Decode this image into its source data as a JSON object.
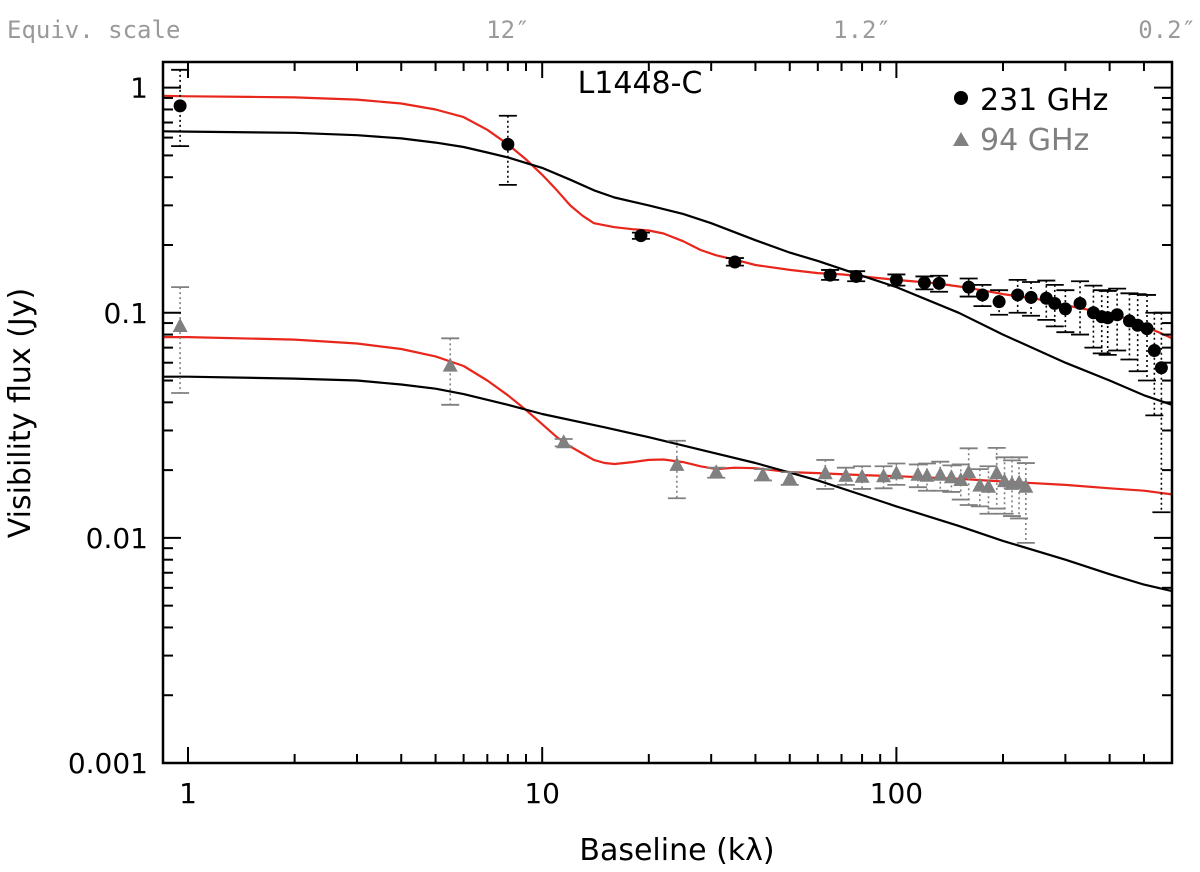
{
  "chart_data": {
    "type": "scatter",
    "title": "L1448-C",
    "xlabel": "Baseline (kλ)",
    "ylabel": "Visibility flux (Jy)",
    "xscale": "log",
    "yscale": "log",
    "xlim": [
      0.85,
      600
    ],
    "ylim": [
      0.001,
      1.3
    ],
    "x_ticks": [
      {
        "value": 1,
        "label": "1"
      },
      {
        "value": 10,
        "label": "10"
      },
      {
        "value": 100,
        "label": "100"
      }
    ],
    "y_ticks": [
      {
        "value": 0.001,
        "label": "0.001"
      },
      {
        "value": 0.01,
        "label": "0.01"
      },
      {
        "value": 0.1,
        "label": "0.1"
      },
      {
        "value": 1,
        "label": "1"
      }
    ],
    "top_axis": {
      "label": "Equiv. scale",
      "ticks": [
        {
          "value": 8,
          "label": "12″"
        },
        {
          "value": 80,
          "label": "1.2″"
        },
        {
          "value": 500,
          "label": "0.2″"
        }
      ]
    },
    "colors": {
      "s231": "#000000",
      "s94": "#808080",
      "model_red": "#e8261b",
      "model_black": "#000000",
      "top_label": "#9a9a9a"
    },
    "legend": [
      {
        "label": "231 GHz",
        "marker": "circle",
        "color": "#000000"
      },
      {
        "label": "94 GHz",
        "marker": "triangle",
        "color": "#808080"
      }
    ],
    "series": [
      {
        "name": "231 GHz",
        "marker": "circle",
        "color": "#000000",
        "points": [
          {
            "x": 0.95,
            "y": 0.83,
            "lo": 0.55,
            "hi": 1.2
          },
          {
            "x": 8.0,
            "y": 0.56,
            "lo": 0.37,
            "hi": 0.75
          },
          {
            "x": 19,
            "y": 0.22,
            "lo": 0.213,
            "hi": 0.227
          },
          {
            "x": 35,
            "y": 0.168,
            "lo": 0.162,
            "hi": 0.175
          },
          {
            "x": 65,
            "y": 0.147,
            "lo": 0.14,
            "hi": 0.155
          },
          {
            "x": 77,
            "y": 0.145,
            "lo": 0.138,
            "hi": 0.153
          },
          {
            "x": 100,
            "y": 0.14,
            "lo": 0.132,
            "hi": 0.148
          },
          {
            "x": 120,
            "y": 0.136,
            "lo": 0.127,
            "hi": 0.145
          },
          {
            "x": 132,
            "y": 0.135,
            "lo": 0.124,
            "hi": 0.146
          },
          {
            "x": 160,
            "y": 0.13,
            "lo": 0.118,
            "hi": 0.142
          },
          {
            "x": 175,
            "y": 0.12,
            "lo": 0.107,
            "hi": 0.133
          },
          {
            "x": 195,
            "y": 0.112,
            "lo": 0.098,
            "hi": 0.126
          },
          {
            "x": 220,
            "y": 0.12,
            "lo": 0.1,
            "hi": 0.14
          },
          {
            "x": 240,
            "y": 0.117,
            "lo": 0.097,
            "hi": 0.137
          },
          {
            "x": 265,
            "y": 0.116,
            "lo": 0.093,
            "hi": 0.139
          },
          {
            "x": 280,
            "y": 0.11,
            "lo": 0.087,
            "hi": 0.133
          },
          {
            "x": 300,
            "y": 0.104,
            "lo": 0.082,
            "hi": 0.126
          },
          {
            "x": 330,
            "y": 0.11,
            "lo": 0.08,
            "hi": 0.138
          },
          {
            "x": 360,
            "y": 0.1,
            "lo": 0.07,
            "hi": 0.132
          },
          {
            "x": 380,
            "y": 0.096,
            "lo": 0.066,
            "hi": 0.126
          },
          {
            "x": 395,
            "y": 0.095,
            "lo": 0.065,
            "hi": 0.125
          },
          {
            "x": 420,
            "y": 0.098,
            "lo": 0.068,
            "hi": 0.128
          },
          {
            "x": 455,
            "y": 0.092,
            "lo": 0.062,
            "hi": 0.122
          },
          {
            "x": 480,
            "y": 0.088,
            "lo": 0.055,
            "hi": 0.121
          },
          {
            "x": 510,
            "y": 0.085,
            "lo": 0.05,
            "hi": 0.12
          },
          {
            "x": 535,
            "y": 0.068,
            "lo": 0.035,
            "hi": 0.1
          },
          {
            "x": 560,
            "y": 0.057,
            "lo": 0.013,
            "hi": 0.1
          }
        ]
      },
      {
        "name": "94 GHz",
        "marker": "triangle",
        "color": "#808080",
        "points": [
          {
            "x": 0.95,
            "y": 0.087,
            "lo": 0.044,
            "hi": 0.13
          },
          {
            "x": 5.5,
            "y": 0.058,
            "lo": 0.039,
            "hi": 0.077
          },
          {
            "x": 11.5,
            "y": 0.0265,
            "lo": 0.0255,
            "hi": 0.0275
          },
          {
            "x": 24,
            "y": 0.021,
            "lo": 0.015,
            "hi": 0.027
          },
          {
            "x": 31,
            "y": 0.0195,
            "lo": 0.0185,
            "hi": 0.0205
          },
          {
            "x": 42,
            "y": 0.019,
            "lo": 0.018,
            "hi": 0.0202
          },
          {
            "x": 50,
            "y": 0.0183,
            "lo": 0.0172,
            "hi": 0.0196
          },
          {
            "x": 63,
            "y": 0.0193,
            "lo": 0.0165,
            "hi": 0.0222
          },
          {
            "x": 72,
            "y": 0.0188,
            "lo": 0.0172,
            "hi": 0.0205
          },
          {
            "x": 80,
            "y": 0.0186,
            "lo": 0.0165,
            "hi": 0.0208
          },
          {
            "x": 92,
            "y": 0.0187,
            "lo": 0.0166,
            "hi": 0.0208
          },
          {
            "x": 100,
            "y": 0.0193,
            "lo": 0.0172,
            "hi": 0.0214
          },
          {
            "x": 115,
            "y": 0.019,
            "lo": 0.0168,
            "hi": 0.0212
          },
          {
            "x": 122,
            "y": 0.0188,
            "lo": 0.0162,
            "hi": 0.0214
          },
          {
            "x": 133,
            "y": 0.019,
            "lo": 0.0162,
            "hi": 0.0218
          },
          {
            "x": 143,
            "y": 0.0185,
            "lo": 0.016,
            "hi": 0.021
          },
          {
            "x": 152,
            "y": 0.018,
            "lo": 0.0148,
            "hi": 0.0212
          },
          {
            "x": 160,
            "y": 0.0195,
            "lo": 0.014,
            "hi": 0.025
          },
          {
            "x": 172,
            "y": 0.017,
            "lo": 0.0138,
            "hi": 0.0202
          },
          {
            "x": 182,
            "y": 0.0168,
            "lo": 0.0128,
            "hi": 0.0208
          },
          {
            "x": 192,
            "y": 0.0193,
            "lo": 0.0135,
            "hi": 0.0251
          },
          {
            "x": 202,
            "y": 0.0178,
            "lo": 0.0128,
            "hi": 0.0228
          },
          {
            "x": 212,
            "y": 0.0173,
            "lo": 0.0125,
            "hi": 0.0221
          },
          {
            "x": 222,
            "y": 0.0175,
            "lo": 0.0122,
            "hi": 0.0228
          },
          {
            "x": 232,
            "y": 0.0168,
            "lo": 0.0095,
            "hi": 0.0215
          }
        ]
      }
    ],
    "models": [
      {
        "name": "231 GHz red model",
        "color": "#e8261b",
        "points": [
          [
            0.85,
            0.92
          ],
          [
            1,
            0.915
          ],
          [
            1.5,
            0.91
          ],
          [
            2,
            0.905
          ],
          [
            3,
            0.885
          ],
          [
            4,
            0.85
          ],
          [
            5,
            0.8
          ],
          [
            6,
            0.74
          ],
          [
            7,
            0.65
          ],
          [
            8,
            0.56
          ],
          [
            9,
            0.48
          ],
          [
            10,
            0.41
          ],
          [
            11,
            0.35
          ],
          [
            12,
            0.3
          ],
          [
            13,
            0.27
          ],
          [
            14,
            0.25
          ],
          [
            16,
            0.24
          ],
          [
            18,
            0.235
          ],
          [
            20,
            0.232
          ],
          [
            22,
            0.225
          ],
          [
            25,
            0.208
          ],
          [
            28,
            0.19
          ],
          [
            31,
            0.18
          ],
          [
            35,
            0.172
          ],
          [
            40,
            0.163
          ],
          [
            50,
            0.155
          ],
          [
            60,
            0.15
          ],
          [
            70,
            0.148
          ],
          [
            80,
            0.145
          ],
          [
            100,
            0.14
          ],
          [
            130,
            0.135
          ],
          [
            160,
            0.129
          ],
          [
            200,
            0.121
          ],
          [
            250,
            0.115
          ],
          [
            300,
            0.108
          ],
          [
            350,
            0.103
          ],
          [
            400,
            0.099
          ],
          [
            450,
            0.094
          ],
          [
            500,
            0.087
          ],
          [
            550,
            0.082
          ],
          [
            600,
            0.077
          ]
        ]
      },
      {
        "name": "231 GHz black model",
        "color": "#000000",
        "points": [
          [
            0.85,
            0.64
          ],
          [
            1,
            0.638
          ],
          [
            2,
            0.63
          ],
          [
            3,
            0.615
          ],
          [
            4,
            0.595
          ],
          [
            5,
            0.57
          ],
          [
            6,
            0.545
          ],
          [
            7,
            0.515
          ],
          [
            8,
            0.49
          ],
          [
            10,
            0.44
          ],
          [
            12,
            0.39
          ],
          [
            14,
            0.35
          ],
          [
            16,
            0.325
          ],
          [
            20,
            0.3
          ],
          [
            25,
            0.275
          ],
          [
            30,
            0.25
          ],
          [
            40,
            0.21
          ],
          [
            50,
            0.185
          ],
          [
            60,
            0.17
          ],
          [
            80,
            0.146
          ],
          [
            100,
            0.13
          ],
          [
            150,
            0.1
          ],
          [
            200,
            0.08
          ],
          [
            300,
            0.06
          ],
          [
            400,
            0.05
          ],
          [
            500,
            0.043
          ],
          [
            600,
            0.039
          ]
        ]
      },
      {
        "name": "94 GHz red model",
        "color": "#e8261b",
        "points": [
          [
            0.85,
            0.078
          ],
          [
            1,
            0.078
          ],
          [
            2,
            0.076
          ],
          [
            3,
            0.073
          ],
          [
            4,
            0.069
          ],
          [
            5,
            0.064
          ],
          [
            6,
            0.058
          ],
          [
            7,
            0.05
          ],
          [
            8,
            0.043
          ],
          [
            9,
            0.037
          ],
          [
            10,
            0.032
          ],
          [
            11,
            0.028
          ],
          [
            12,
            0.0255
          ],
          [
            13,
            0.0237
          ],
          [
            14,
            0.0222
          ],
          [
            15,
            0.0215
          ],
          [
            16,
            0.0213
          ],
          [
            18,
            0.0217
          ],
          [
            20,
            0.0222
          ],
          [
            22,
            0.0223
          ],
          [
            25,
            0.0217
          ],
          [
            28,
            0.0208
          ],
          [
            31,
            0.0202
          ],
          [
            35,
            0.0205
          ],
          [
            40,
            0.0204
          ],
          [
            50,
            0.0196
          ],
          [
            60,
            0.0194
          ],
          [
            80,
            0.019
          ],
          [
            100,
            0.0188
          ],
          [
            150,
            0.0183
          ],
          [
            200,
            0.0178
          ],
          [
            300,
            0.0172
          ],
          [
            400,
            0.0166
          ],
          [
            500,
            0.0162
          ],
          [
            600,
            0.0156
          ]
        ]
      },
      {
        "name": "94 GHz black model",
        "color": "#000000",
        "points": [
          [
            0.85,
            0.052
          ],
          [
            1,
            0.052
          ],
          [
            2,
            0.051
          ],
          [
            3,
            0.05
          ],
          [
            4,
            0.048
          ],
          [
            5,
            0.046
          ],
          [
            6,
            0.0435
          ],
          [
            8,
            0.039
          ],
          [
            10,
            0.0355
          ],
          [
            15,
            0.031
          ],
          [
            20,
            0.028
          ],
          [
            30,
            0.024
          ],
          [
            40,
            0.0215
          ],
          [
            60,
            0.018
          ],
          [
            80,
            0.0155
          ],
          [
            100,
            0.0138
          ],
          [
            150,
            0.0113
          ],
          [
            200,
            0.0097
          ],
          [
            300,
            0.008
          ],
          [
            400,
            0.0069
          ],
          [
            500,
            0.0062
          ],
          [
            600,
            0.0058
          ]
        ]
      }
    ]
  }
}
